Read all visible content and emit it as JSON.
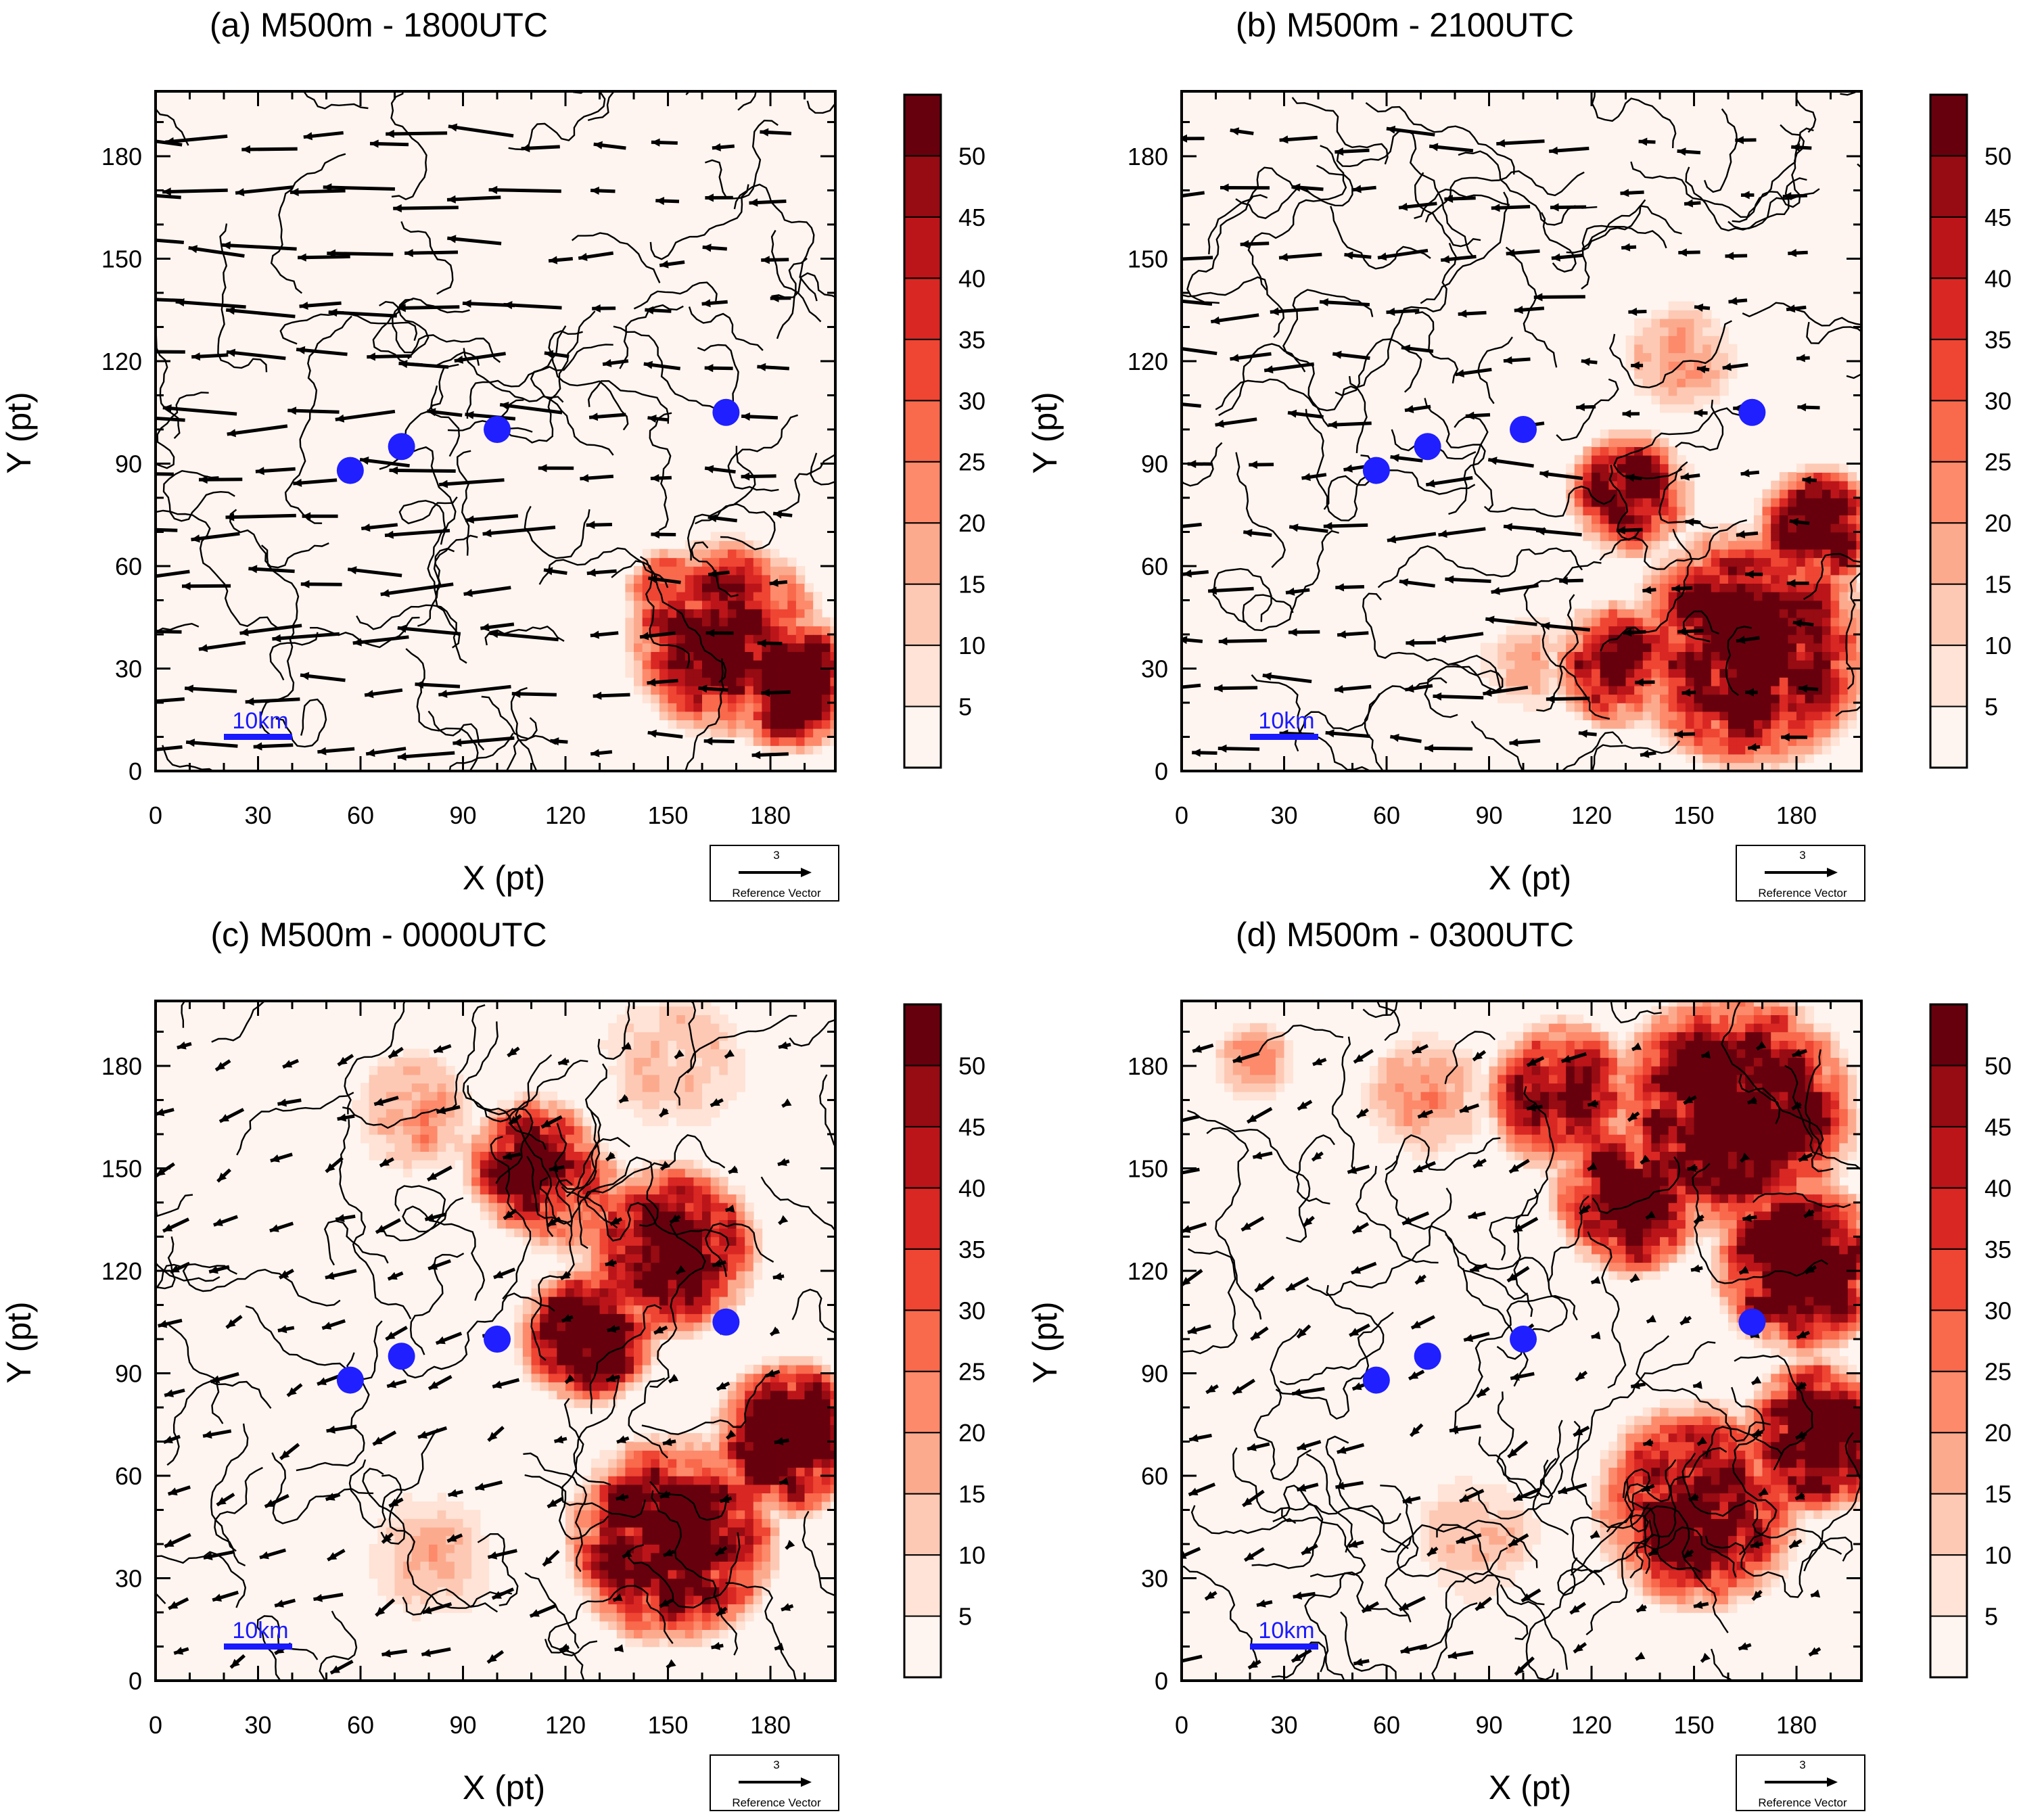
{
  "chart_data": [
    {
      "type": "heatmap",
      "title": "(a)  M500m - 1800UTC",
      "xlabel": "X (pt)",
      "ylabel": "Y (pt)",
      "xlim": [
        0,
        199
      ],
      "ylim": [
        0,
        199
      ],
      "x_ticks": [
        0,
        30,
        60,
        90,
        120,
        150,
        180
      ],
      "y_ticks": [
        0,
        30,
        60,
        90,
        120,
        150,
        180
      ],
      "x_tick_labels": [
        "0",
        "30",
        "60",
        "90",
        "120",
        "150",
        "180"
      ],
      "y_tick_labels": [
        "0",
        "30",
        "60",
        "90",
        "120",
        "150",
        "180"
      ],
      "colorbar_labels": [
        "5",
        "10",
        "15",
        "20",
        "25",
        "30",
        "35",
        "40",
        "45",
        "50"
      ],
      "colorbar_levels": [
        0,
        5,
        10,
        15,
        20,
        25,
        30,
        35,
        40,
        45,
        50,
        55
      ],
      "shading_regions": [
        {
          "x": 165,
          "y": 38,
          "r": 28,
          "level": 40
        },
        {
          "x": 185,
          "y": 25,
          "r": 20,
          "level": 50
        },
        {
          "x": 150,
          "y": 50,
          "r": 14,
          "level": 25
        }
      ],
      "stations": [
        {
          "x": 57,
          "y": 88
        },
        {
          "x": 72,
          "y": 95
        },
        {
          "x": 100,
          "y": 100
        },
        {
          "x": 167,
          "y": 105
        }
      ],
      "scale_bar": {
        "label": "10km",
        "x0": 20,
        "x1": 40,
        "y": 10
      },
      "reference_vector": {
        "value": "3",
        "label": "Reference Vector"
      },
      "wind_direction": "easterly-westward",
      "wind_strength": "strong"
    },
    {
      "type": "heatmap",
      "title": "(b)  M500m - 2100UTC",
      "xlabel": "X (pt)",
      "ylabel": "Y (pt)",
      "xlim": [
        0,
        199
      ],
      "ylim": [
        0,
        199
      ],
      "x_ticks": [
        0,
        30,
        60,
        90,
        120,
        150,
        180
      ],
      "y_ticks": [
        0,
        30,
        60,
        90,
        120,
        150,
        180
      ],
      "x_tick_labels": [
        "0",
        "30",
        "60",
        "90",
        "120",
        "150",
        "180"
      ],
      "y_tick_labels": [
        "0",
        "30",
        "60",
        "90",
        "120",
        "150",
        "180"
      ],
      "colorbar_labels": [
        "5",
        "10",
        "15",
        "20",
        "25",
        "30",
        "35",
        "40",
        "45",
        "50"
      ],
      "colorbar_levels": [
        0,
        5,
        10,
        15,
        20,
        25,
        30,
        35,
        40,
        45,
        50,
        55
      ],
      "shading_regions": [
        {
          "x": 165,
          "y": 35,
          "r": 35,
          "level": 45
        },
        {
          "x": 130,
          "y": 80,
          "r": 18,
          "level": 40
        },
        {
          "x": 185,
          "y": 70,
          "r": 18,
          "level": 40
        },
        {
          "x": 125,
          "y": 30,
          "r": 18,
          "level": 35
        },
        {
          "x": 145,
          "y": 120,
          "r": 16,
          "level": 15
        },
        {
          "x": 100,
          "y": 30,
          "r": 15,
          "level": 10
        }
      ],
      "stations": [
        {
          "x": 57,
          "y": 88
        },
        {
          "x": 72,
          "y": 95
        },
        {
          "x": 100,
          "y": 100
        },
        {
          "x": 167,
          "y": 105
        }
      ],
      "scale_bar": {
        "label": "10km",
        "x0": 20,
        "x1": 40,
        "y": 10
      },
      "reference_vector": {
        "value": "3",
        "label": "Reference Vector"
      },
      "wind_direction": "easterly-westward",
      "wind_strength": "moderate"
    },
    {
      "type": "heatmap",
      "title": "(c)  M500m - 0000UTC",
      "xlabel": "X (pt)",
      "ylabel": "Y (pt)",
      "xlim": [
        0,
        199
      ],
      "ylim": [
        0,
        199
      ],
      "x_ticks": [
        0,
        30,
        60,
        90,
        120,
        150,
        180
      ],
      "y_ticks": [
        0,
        30,
        60,
        90,
        120,
        150,
        180
      ],
      "x_tick_labels": [
        "0",
        "30",
        "60",
        "90",
        "120",
        "150",
        "180"
      ],
      "y_tick_labels": [
        "0",
        "30",
        "60",
        "90",
        "120",
        "150",
        "180"
      ],
      "colorbar_labels": [
        "5",
        "10",
        "15",
        "20",
        "25",
        "30",
        "35",
        "40",
        "45",
        "50"
      ],
      "colorbar_levels": [
        0,
        5,
        10,
        15,
        20,
        25,
        30,
        35,
        40,
        45,
        50,
        55
      ],
      "shading_regions": [
        {
          "x": 150,
          "y": 125,
          "r": 25,
          "level": 45
        },
        {
          "x": 125,
          "y": 100,
          "r": 20,
          "level": 45
        },
        {
          "x": 185,
          "y": 70,
          "r": 22,
          "level": 50
        },
        {
          "x": 150,
          "y": 40,
          "r": 30,
          "level": 45
        },
        {
          "x": 110,
          "y": 150,
          "r": 20,
          "level": 40
        },
        {
          "x": 120,
          "y": 140,
          "r": 18,
          "level": 25
        },
        {
          "x": 150,
          "y": 180,
          "r": 22,
          "level": 10
        },
        {
          "x": 75,
          "y": 165,
          "r": 18,
          "level": 15
        },
        {
          "x": 80,
          "y": 35,
          "r": 20,
          "level": 10
        }
      ],
      "stations": [
        {
          "x": 57,
          "y": 88
        },
        {
          "x": 72,
          "y": 95
        },
        {
          "x": 100,
          "y": 100
        },
        {
          "x": 167,
          "y": 105
        }
      ],
      "scale_bar": {
        "label": "10km",
        "x0": 20,
        "x1": 40,
        "y": 10
      },
      "reference_vector": {
        "value": "3",
        "label": "Reference Vector"
      },
      "wind_direction": "northeasterly-southwestward",
      "wind_strength": "weak"
    },
    {
      "type": "heatmap",
      "title": "(d)  M500m - 0300UTC",
      "xlabel": "X (pt)",
      "ylabel": "Y (pt)",
      "xlim": [
        0,
        199
      ],
      "ylim": [
        0,
        199
      ],
      "x_ticks": [
        0,
        30,
        60,
        90,
        120,
        150,
        180
      ],
      "y_ticks": [
        0,
        30,
        60,
        90,
        120,
        150,
        180
      ],
      "x_tick_labels": [
        "0",
        "30",
        "60",
        "90",
        "120",
        "150",
        "180"
      ],
      "y_tick_labels": [
        "0",
        "30",
        "60",
        "90",
        "120",
        "150",
        "180"
      ],
      "colorbar_labels": [
        "5",
        "10",
        "15",
        "20",
        "25",
        "30",
        "35",
        "40",
        "45",
        "50"
      ],
      "colorbar_levels": [
        0,
        5,
        10,
        15,
        20,
        25,
        30,
        35,
        40,
        45,
        50,
        55
      ],
      "shading_regions": [
        {
          "x": 160,
          "y": 165,
          "r": 35,
          "level": 50
        },
        {
          "x": 180,
          "y": 120,
          "r": 25,
          "level": 50
        },
        {
          "x": 130,
          "y": 140,
          "r": 22,
          "level": 45
        },
        {
          "x": 185,
          "y": 70,
          "r": 22,
          "level": 50
        },
        {
          "x": 150,
          "y": 50,
          "r": 30,
          "level": 40
        },
        {
          "x": 110,
          "y": 170,
          "r": 22,
          "level": 35
        },
        {
          "x": 20,
          "y": 180,
          "r": 12,
          "level": 15
        },
        {
          "x": 85,
          "y": 40,
          "r": 20,
          "level": 10
        },
        {
          "x": 70,
          "y": 170,
          "r": 18,
          "level": 15
        }
      ],
      "stations": [
        {
          "x": 57,
          "y": 88
        },
        {
          "x": 72,
          "y": 95
        },
        {
          "x": 100,
          "y": 100
        },
        {
          "x": 167,
          "y": 105
        }
      ],
      "scale_bar": {
        "label": "10km",
        "x0": 20,
        "x1": 40,
        "y": 10
      },
      "reference_vector": {
        "value": "3",
        "label": "Reference Vector"
      },
      "wind_direction": "northeasterly-southwestward",
      "wind_strength": "weak"
    }
  ],
  "colors": {
    "colorbar": [
      "#fff5f0",
      "#fee3d6",
      "#fdc9b4",
      "#fcaa8e",
      "#fc8a6b",
      "#f9694c",
      "#ef4533",
      "#d92723",
      "#bb151a",
      "#970b13",
      "#67000d"
    ],
    "station": "#1f1fff",
    "scale_bar": "#1a1aff",
    "contour": "#000000",
    "vector": "#000000"
  }
}
